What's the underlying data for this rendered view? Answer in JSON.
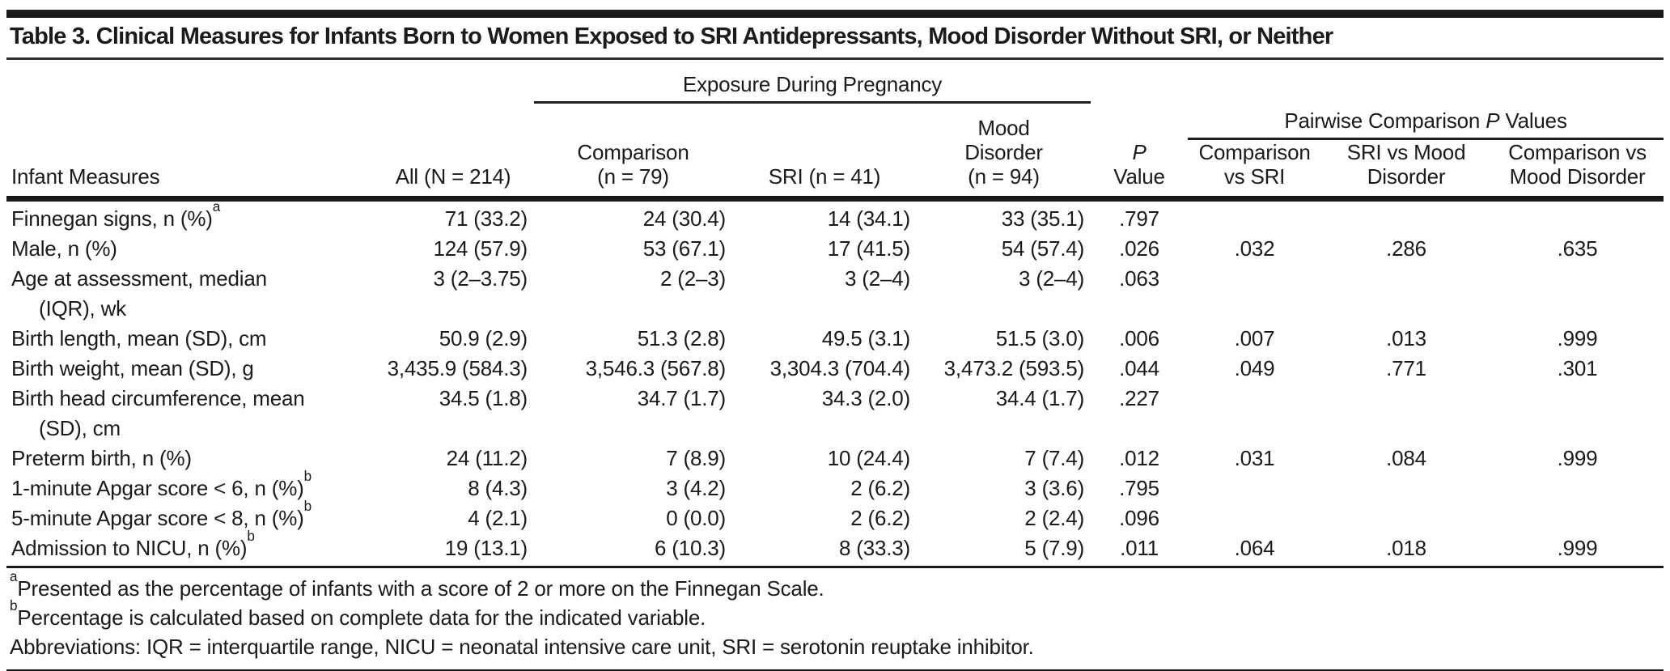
{
  "table": {
    "title": "Table 3. Clinical Measures for Infants Born to Women Exposed to SRI Antidepressants, Mood Disorder Without SRI, or Neither",
    "spanners": {
      "exposure": "Exposure During Pregnancy",
      "pairwise_prefix": "Pairwise Comparison",
      "pairwise_italic": "P",
      "pairwise_suffix": "Values"
    },
    "columns": {
      "infant_measures": "Infant Measures",
      "all": "All (N = 214)",
      "comparison_l1": "Comparison",
      "comparison_l2": "(n = 79)",
      "sri": "SRI (n = 41)",
      "mood_l1": "Mood",
      "mood_l2": "Disorder",
      "mood_l3": "(n = 94)",
      "p_l1": "P",
      "p_l2": "Value",
      "comp_vs_sri_l1": "Comparison",
      "comp_vs_sri_l2": "vs SRI",
      "sri_vs_mood_l1": "SRI vs Mood",
      "sri_vs_mood_l2": "Disorder",
      "comp_vs_mood_l1": "Comparison vs",
      "comp_vs_mood_l2": "Mood Disorder"
    },
    "rows": [
      {
        "label": "Finnegan signs, n (%)",
        "sup": "a",
        "label2": "",
        "values": [
          "71 (33.2)",
          "24 (30.4)",
          "14 (34.1)",
          "33 (35.1)",
          ".797",
          "",
          "",
          ""
        ]
      },
      {
        "label": "Male, n (%)",
        "sup": "",
        "label2": "",
        "values": [
          "124 (57.9)",
          "53 (67.1)",
          "17 (41.5)",
          "54 (57.4)",
          ".026",
          ".032",
          ".286",
          ".635"
        ]
      },
      {
        "label": "Age at assessment, median",
        "sup": "",
        "label2": "(IQR), wk",
        "values": [
          "3 (2–3.75)",
          "2 (2–3)",
          "3 (2–4)",
          "3 (2–4)",
          ".063",
          "",
          "",
          ""
        ]
      },
      {
        "label": "Birth length, mean (SD), cm",
        "sup": "",
        "label2": "",
        "values": [
          "50.9 (2.9)",
          "51.3 (2.8)",
          "49.5 (3.1)",
          "51.5 (3.0)",
          ".006",
          ".007",
          ".013",
          ".999"
        ]
      },
      {
        "label": "Birth weight, mean (SD), g",
        "sup": "",
        "label2": "",
        "values": [
          "3,435.9 (584.3)",
          "3,546.3 (567.8)",
          "3,304.3 (704.4)",
          "3,473.2 (593.5)",
          ".044",
          ".049",
          ".771",
          ".301"
        ]
      },
      {
        "label": "Birth head circumference, mean",
        "sup": "",
        "label2": "(SD), cm",
        "values": [
          "34.5 (1.8)",
          "34.7 (1.7)",
          "34.3 (2.0)",
          "34.4 (1.7)",
          ".227",
          "",
          "",
          ""
        ]
      },
      {
        "label": "Preterm birth, n (%)",
        "sup": "",
        "label2": "",
        "values": [
          "24 (11.2)",
          "7 (8.9)",
          "10 (24.4)",
          "7 (7.4)",
          ".012",
          ".031",
          ".084",
          ".999"
        ]
      },
      {
        "label": "1-minute Apgar score < 6, n (%)",
        "sup": "b",
        "label2": "",
        "values": [
          "8 (4.3)",
          "3 (4.2)",
          "2 (6.2)",
          "3 (3.6)",
          ".795",
          "",
          "",
          ""
        ]
      },
      {
        "label": "5-minute Apgar score < 8, n (%)",
        "sup": "b",
        "label2": "",
        "values": [
          "4 (2.1)",
          "0 (0.0)",
          "2 (6.2)",
          "2 (2.4)",
          ".096",
          "",
          "",
          ""
        ]
      },
      {
        "label": "Admission to NICU, n (%)",
        "sup": "b",
        "label2": "",
        "values": [
          "19 (13.1)",
          "6 (10.3)",
          "8 (33.3)",
          "5 (7.9)",
          ".011",
          ".064",
          ".018",
          ".999"
        ]
      }
    ],
    "footnotes": [
      {
        "marker": "a",
        "text": "Presented as the percentage of infants with a score of 2 or more on the Finnegan Scale."
      },
      {
        "marker": "b",
        "text": "Percentage is calculated based on complete data for the indicated variable."
      },
      {
        "marker": "",
        "text": "Abbreviations: IQR = interquartile range, NICU = neonatal intensive care unit, SRI = serotonin reuptake inhibitor."
      }
    ]
  }
}
